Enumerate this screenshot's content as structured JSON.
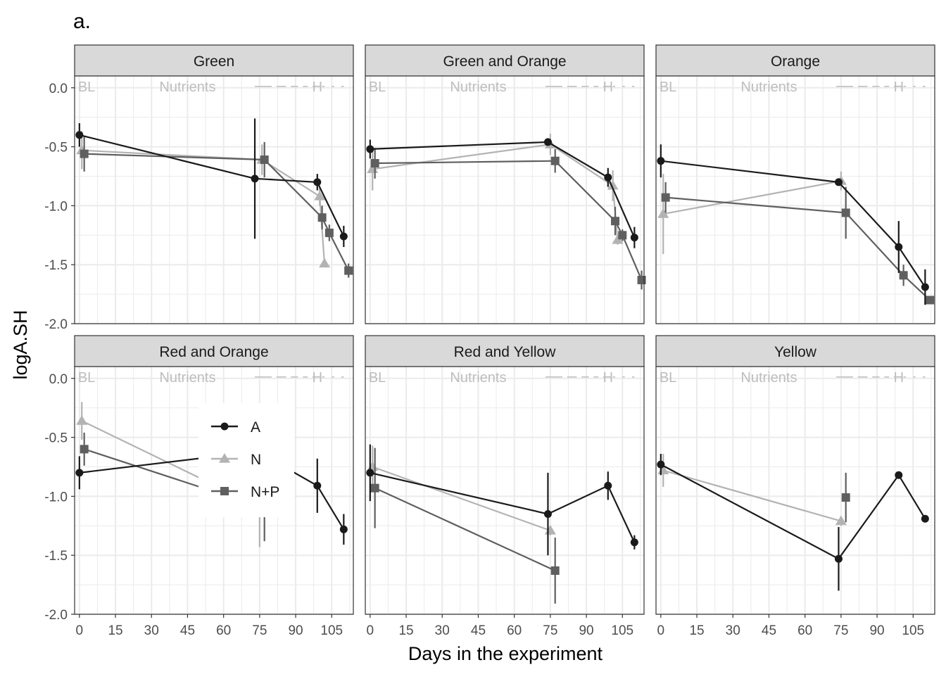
{
  "figure": {
    "tag": "a.",
    "xlabel": "Days in the experiment",
    "ylabel": "logA.SH"
  },
  "colors": {
    "A": "#1a1a1a",
    "N": "#b3b3b3",
    "N+P": "#5f5f5f",
    "strip_fill": "#d9d9d9",
    "grid": "#ebebeb",
    "annotation": "#bdbdbd"
  },
  "chart_data": {
    "type": "line",
    "facet_layout": "2 rows x 3 columns",
    "xlim": [
      -2,
      114
    ],
    "ylim": [
      -2.0,
      0.1
    ],
    "x_ticks": [
      0,
      15,
      30,
      45,
      60,
      75,
      90,
      105
    ],
    "y_ticks": [
      0.0,
      -0.5,
      -1.0,
      -1.5,
      -2.0
    ],
    "y_tick_labels": [
      "0.0",
      "-0.5",
      "-1.0",
      "-1.5",
      "-2.0"
    ],
    "annotations": [
      {
        "text": "BL",
        "x": 3
      },
      {
        "text": "Nutrients",
        "x": 45
      },
      {
        "text": "H",
        "x": 99
      }
    ],
    "annotation_dash_segments": [
      [
        73,
        80
      ],
      [
        82,
        86
      ],
      [
        88,
        91
      ],
      [
        93,
        95
      ],
      [
        97,
        99
      ],
      [
        101,
        102
      ],
      [
        105,
        106
      ],
      [
        109,
        110
      ]
    ],
    "grid": true,
    "legend": {
      "placement": "inside bottom-left panel",
      "entries": [
        "A",
        "N",
        "N+P"
      ]
    },
    "panels": [
      {
        "title": "Green",
        "series": [
          {
            "name": "A",
            "points": [
              {
                "x": 0,
                "y": -0.4,
                "err": 0.1
              },
              {
                "x": 73,
                "y": -0.77,
                "err": 0.51
              },
              {
                "x": 99,
                "y": -0.8,
                "err": 0.07
              },
              {
                "x": 110,
                "y": -1.26,
                "err": 0.09
              }
            ]
          },
          {
            "name": "N",
            "points": [
              {
                "x": 1,
                "y": -0.53,
                "err": 0.16
              },
              {
                "x": 76,
                "y": -0.61,
                "err": 0.13
              },
              {
                "x": 100,
                "y": -0.92,
                "err": 0.08
              },
              {
                "x": 102,
                "y": -1.49,
                "err": 0.03
              }
            ]
          },
          {
            "name": "N+P",
            "points": [
              {
                "x": 2,
                "y": -0.56,
                "err": 0.15
              },
              {
                "x": 77,
                "y": -0.61,
                "err": 0.15
              },
              {
                "x": 101,
                "y": -1.1,
                "err": 0.1
              },
              {
                "x": 104,
                "y": -1.23,
                "err": 0.07
              },
              {
                "x": 112,
                "y": -1.55,
                "err": 0.06
              }
            ]
          }
        ]
      },
      {
        "title": "Green and Orange",
        "series": [
          {
            "name": "A",
            "points": [
              {
                "x": 0,
                "y": -0.52,
                "err": 0.08
              },
              {
                "x": 74,
                "y": -0.46,
                "err": 0.03
              },
              {
                "x": 99,
                "y": -0.76,
                "err": 0.08
              },
              {
                "x": 110,
                "y": -1.27,
                "err": 0.09
              }
            ]
          },
          {
            "name": "N",
            "points": [
              {
                "x": 1,
                "y": -0.69,
                "err": 0.18
              },
              {
                "x": 75,
                "y": -0.48,
                "err": 0.09
              },
              {
                "x": 101,
                "y": -0.83,
                "err": 0.13
              },
              {
                "x": 103,
                "y": -1.29,
                "err": 0.04
              }
            ]
          },
          {
            "name": "N+P",
            "points": [
              {
                "x": 2,
                "y": -0.64,
                "err": 0.13
              },
              {
                "x": 77,
                "y": -0.62,
                "err": 0.1
              },
              {
                "x": 102,
                "y": -1.13,
                "err": 0.12
              },
              {
                "x": 105,
                "y": -1.25,
                "err": 0.05
              },
              {
                "x": 113,
                "y": -1.63,
                "err": 0.08
              }
            ]
          }
        ]
      },
      {
        "title": "Orange",
        "series": [
          {
            "name": "A",
            "points": [
              {
                "x": 0,
                "y": -0.62,
                "err": 0.14
              },
              {
                "x": 74,
                "y": -0.8,
                "err": 0.02
              },
              {
                "x": 99,
                "y": -1.35,
                "err": 0.22
              },
              {
                "x": 110,
                "y": -1.69,
                "err": 0.15
              }
            ]
          },
          {
            "name": "N",
            "points": [
              {
                "x": 1,
                "y": -1.07,
                "err": 0.34
              },
              {
                "x": 75,
                "y": -0.79,
                "err": 0.08
              }
            ]
          },
          {
            "name": "N+P",
            "points": [
              {
                "x": 2,
                "y": -0.93,
                "err": 0.13
              },
              {
                "x": 77,
                "y": -1.06,
                "err": 0.22
              },
              {
                "x": 101,
                "y": -1.59,
                "err": 0.09
              },
              {
                "x": 112,
                "y": -1.8,
                "err": 0.01
              }
            ]
          }
        ]
      },
      {
        "title": "Red and Orange",
        "series": [
          {
            "name": "A",
            "points": [
              {
                "x": 0,
                "y": -0.8,
                "err": 0.14
              },
              {
                "x": 74,
                "y": -0.62,
                "err": 0.05
              },
              {
                "x": 99,
                "y": -0.91,
                "err": 0.23
              },
              {
                "x": 110,
                "y": -1.28,
                "err": 0.13
              }
            ]
          },
          {
            "name": "N",
            "points": [
              {
                "x": 1,
                "y": -0.36,
                "err": 0.16
              },
              {
                "x": 75,
                "y": -1.09,
                "err": 0.34
              }
            ]
          },
          {
            "name": "N+P",
            "points": [
              {
                "x": 2,
                "y": -0.6,
                "err": 0.14
              },
              {
                "x": 77,
                "y": -1.1,
                "err": 0.28
              }
            ]
          }
        ]
      },
      {
        "title": "Red and Yellow",
        "series": [
          {
            "name": "A",
            "points": [
              {
                "x": 0,
                "y": -0.8,
                "err": 0.24
              },
              {
                "x": 74,
                "y": -1.15,
                "err": 0.35
              },
              {
                "x": 99,
                "y": -0.91,
                "err": 0.12
              },
              {
                "x": 110,
                "y": -1.39,
                "err": 0.06
              }
            ]
          },
          {
            "name": "N",
            "points": [
              {
                "x": 1,
                "y": -0.75,
                "err": 0.18
              },
              {
                "x": 75,
                "y": -1.29,
                "err": 0.04
              }
            ]
          },
          {
            "name": "N+P",
            "points": [
              {
                "x": 2,
                "y": -0.93,
                "err": 0.34
              },
              {
                "x": 77,
                "y": -1.63,
                "err": 0.28
              }
            ]
          }
        ]
      },
      {
        "title": "Yellow",
        "series": [
          {
            "name": "A",
            "points": [
              {
                "x": 0,
                "y": -0.73,
                "err": 0.09
              },
              {
                "x": 74,
                "y": -1.53,
                "err": 0.27
              },
              {
                "x": 99,
                "y": -0.82,
                "err": 0.02
              },
              {
                "x": 110,
                "y": -1.19,
                "err": 0.02
              }
            ]
          },
          {
            "name": "N",
            "points": [
              {
                "x": 1,
                "y": -0.78,
                "err": 0.14
              },
              {
                "x": 75,
                "y": -1.21,
                "err": 0.04
              }
            ]
          },
          {
            "name": "N+P",
            "points": [
              {
                "x": 77,
                "y": -1.01,
                "err": 0.21
              }
            ]
          }
        ]
      }
    ]
  }
}
